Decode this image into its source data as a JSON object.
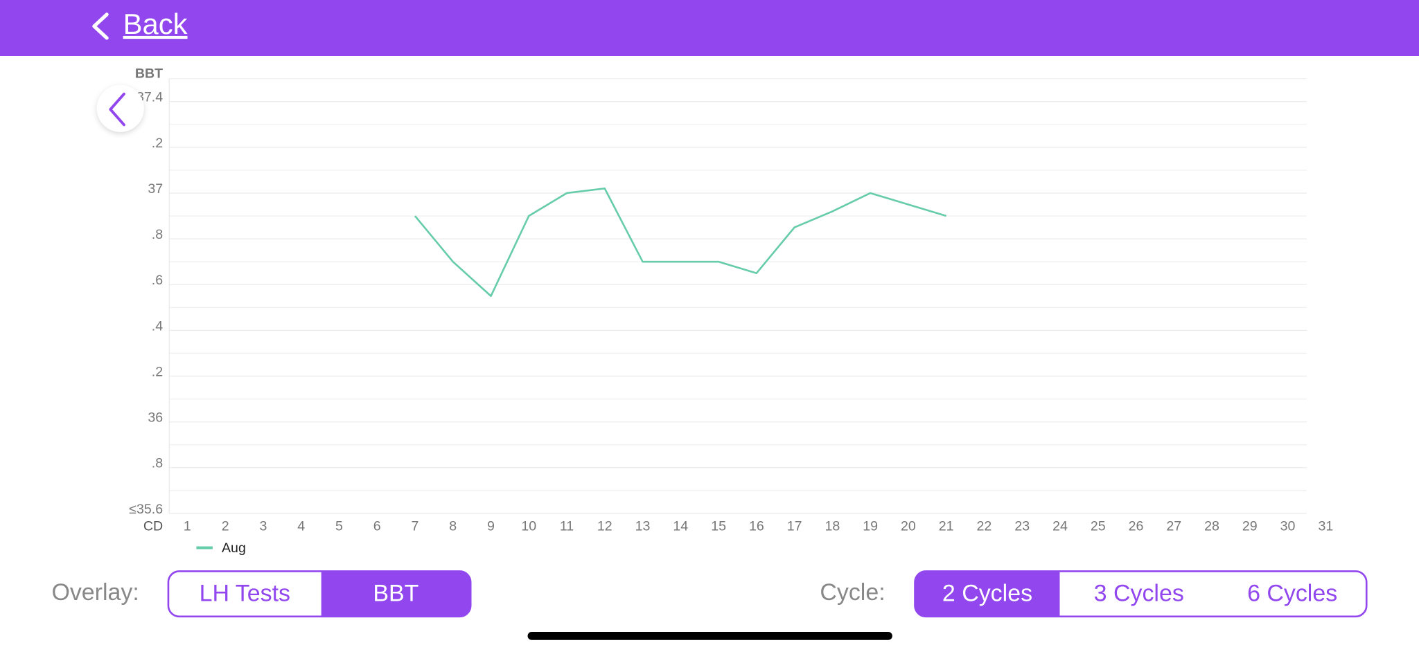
{
  "header": {
    "back": "Back"
  },
  "chart_data": {
    "type": "line",
    "x_label": "CD",
    "y_label": "BBT",
    "x": [
      1,
      2,
      3,
      4,
      5,
      6,
      7,
      8,
      9,
      10,
      11,
      12,
      13,
      14,
      15,
      16,
      17,
      18,
      19,
      20,
      21,
      22,
      23,
      24,
      25,
      26,
      27,
      28,
      29,
      30,
      31
    ],
    "series": [
      {
        "name": "Aug",
        "color": "#66ccaa",
        "values": [
          null,
          null,
          null,
          null,
          null,
          null,
          36.9,
          36.7,
          36.55,
          36.9,
          37.0,
          37.02,
          36.7,
          36.7,
          36.7,
          36.65,
          36.85,
          36.92,
          37.0,
          36.95,
          36.9,
          null,
          null,
          null,
          null,
          null,
          null,
          null,
          null,
          null,
          null
        ]
      }
    ],
    "xlim": [
      0.52,
      30.52
    ],
    "ylim": [
      35.6,
      37.5
    ],
    "yticks": [
      {
        "value": 35.6,
        "label": "≤35.6"
      },
      {
        "value": 35.8,
        "label": ".8"
      },
      36,
      {
        "value": 36.2,
        "label": ".2"
      },
      {
        "value": 36.4,
        "label": ".4"
      },
      {
        "value": 36.6,
        "label": ".6"
      },
      {
        "value": 36.8,
        "label": ".8"
      },
      37,
      {
        "value": 37.2,
        "label": ".2"
      },
      37.4
    ],
    "minor_yticks": [
      35.7,
      35.9,
      36.1,
      36.3,
      36.5,
      36.7,
      36.9,
      37.1,
      37.3,
      37.5
    ],
    "grid": true
  },
  "ui": {
    "overlay": {
      "label": "Overlay:",
      "options": [
        "LH Tests",
        "BBT"
      ],
      "selected_index": 1
    },
    "cycle": {
      "label": "Cycle:",
      "options": [
        "2 Cycles",
        "3 Cycles",
        "6 Cycles"
      ],
      "selected_index": 0
    }
  }
}
